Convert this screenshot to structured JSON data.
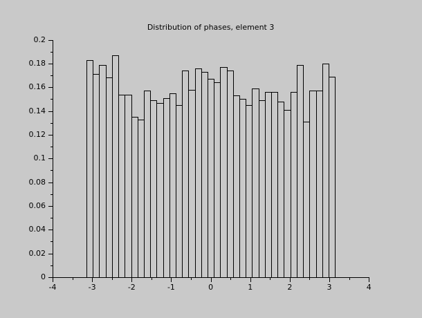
{
  "chart_data": {
    "type": "bar",
    "title": "Distribution of phases, element 3",
    "x_start": -3.1416,
    "x_end": 3.1416,
    "bin_count": 39,
    "values": [
      0.183,
      0.171,
      0.179,
      0.168,
      0.187,
      0.154,
      0.154,
      0.135,
      0.133,
      0.157,
      0.149,
      0.147,
      0.151,
      0.155,
      0.145,
      0.174,
      0.158,
      0.176,
      0.173,
      0.167,
      0.164,
      0.177,
      0.174,
      0.153,
      0.15,
      0.145,
      0.159,
      0.149,
      0.156,
      0.156,
      0.148,
      0.141,
      0.156,
      0.179,
      0.131,
      0.157,
      0.157,
      0.18,
      0.169
    ],
    "xlabel": "",
    "ylabel": "",
    "xlim": [
      -4,
      4
    ],
    "ylim": [
      0,
      0.2
    ],
    "x_major_ticks": [
      -4,
      -3,
      -2,
      -1,
      0,
      1,
      2,
      3,
      4
    ],
    "x_tick_labels": [
      "-4",
      "-3",
      "-2",
      "-1",
      "0",
      "1",
      "2",
      "3",
      "4"
    ],
    "x_minor_step": 0.5,
    "y_major_ticks": [
      0,
      0.02,
      0.04,
      0.06,
      0.08,
      0.1,
      0.12,
      0.14,
      0.16,
      0.18,
      0.2
    ],
    "y_tick_labels": [
      "0",
      "0.02",
      "0.04",
      "0.06",
      "0.08",
      "0.1",
      "0.12",
      "0.14",
      "0.16",
      "0.18",
      "0.2"
    ],
    "y_minor_step": 0.01,
    "grid": false,
    "legend": null,
    "colors": {
      "background": "#c9c9c9",
      "axis": "#000000",
      "bar_fill": "#c9c9c9",
      "bar_border": "#000000"
    }
  }
}
